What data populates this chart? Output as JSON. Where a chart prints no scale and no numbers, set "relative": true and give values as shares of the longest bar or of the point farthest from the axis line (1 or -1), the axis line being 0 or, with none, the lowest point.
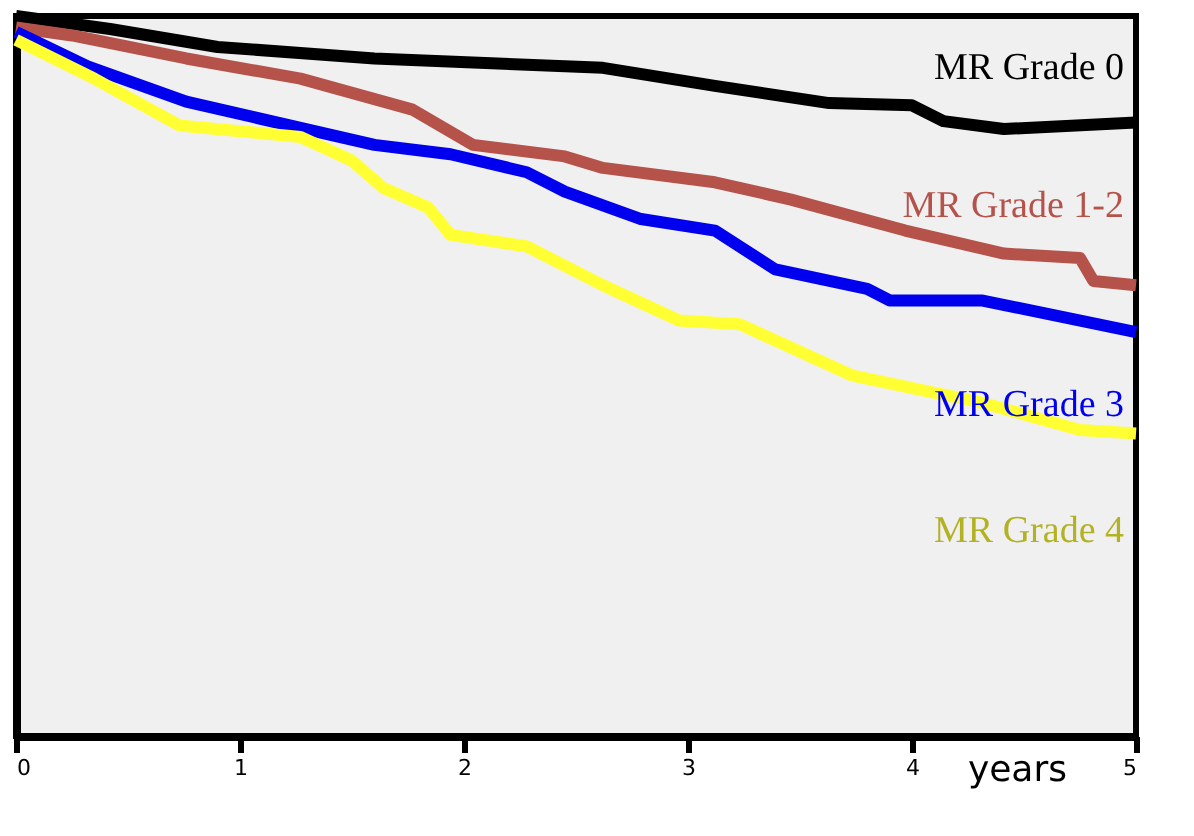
{
  "chart_data": {
    "type": "line",
    "relative": true,
    "xlabel": "years",
    "xlim": [
      0,
      5
    ],
    "xticks": [
      0,
      1,
      2,
      3,
      4,
      5
    ],
    "grid": false,
    "marker": "none",
    "line_style": "solid",
    "series": [
      {
        "name": "MR Grade 0",
        "color": "#000000",
        "x": [
          0,
          0.42,
          0.9,
          1.6,
          2.62,
          3.12,
          3.63,
          4.0,
          4.14,
          4.41,
          5.0
        ],
        "values": [
          1,
          0.982,
          0.957,
          0.941,
          0.928,
          0.903,
          0.879,
          0.876,
          0.854,
          0.843,
          0.852
        ]
      },
      {
        "name": "MR Grade 1-2",
        "color": "#b5524a",
        "x": [
          0,
          0.25,
          0.76,
          1.27,
          1.77,
          2.04,
          2.45,
          2.62,
          3.12,
          3.46,
          3.97,
          4.41,
          4.75,
          4.81,
          5.0
        ],
        "values": [
          0.984,
          0.973,
          0.941,
          0.913,
          0.87,
          0.821,
          0.805,
          0.789,
          0.769,
          0.745,
          0.702,
          0.67,
          0.664,
          0.632,
          0.626
        ]
      },
      {
        "name": "MR Grade 3",
        "color": "#0000ee",
        "x": [
          0,
          0.32,
          0.76,
          1.6,
          1.94,
          2.28,
          2.45,
          2.79,
          3.12,
          3.39,
          3.8,
          3.9,
          4.31,
          5.0
        ],
        "values": [
          0.978,
          0.93,
          0.881,
          0.821,
          0.808,
          0.783,
          0.756,
          0.718,
          0.702,
          0.648,
          0.621,
          0.605,
          0.605,
          0.561
        ]
      },
      {
        "name": "MR Grade 4",
        "color": "#ffff33",
        "x": [
          0,
          0.35,
          0.73,
          1.27,
          1.5,
          1.64,
          1.84,
          1.94,
          2.28,
          2.62,
          2.96,
          3.23,
          3.73,
          4.31,
          4.75,
          5.0
        ],
        "values": [
          0.967,
          0.913,
          0.848,
          0.832,
          0.799,
          0.761,
          0.734,
          0.696,
          0.68,
          0.626,
          0.577,
          0.572,
          0.501,
          0.463,
          0.425,
          0.42
        ]
      }
    ]
  }
}
